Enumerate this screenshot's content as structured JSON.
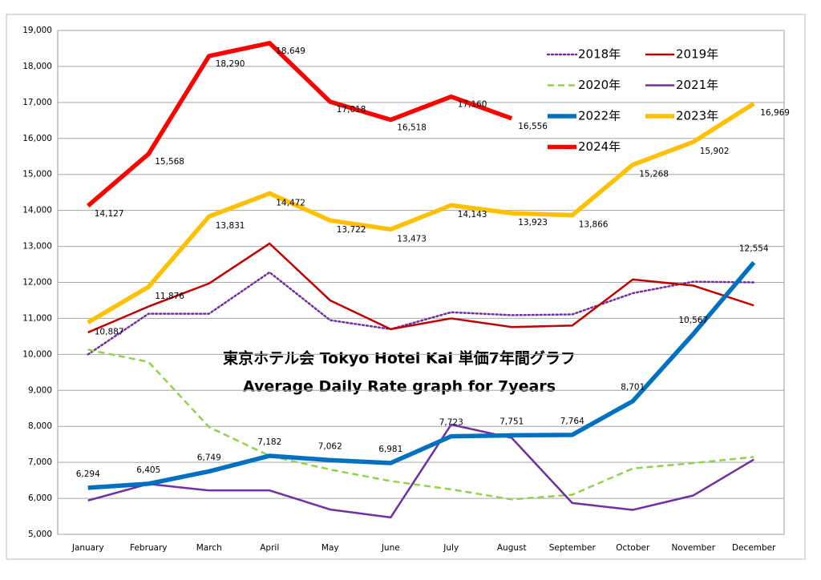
{
  "chart_data": {
    "type": "line",
    "title": "東京ホテル会  Tokyo Hotel Kai  単価7年間グラフ",
    "subtitle": "Average Daily Rate graph for 7years",
    "categories": [
      "January",
      "February",
      "March",
      "April",
      "May",
      "June",
      "July",
      "August",
      "September",
      "October",
      "November",
      "December"
    ],
    "ylim": [
      5000,
      19000
    ],
    "yticks": [
      {
        "value": 5000,
        "label": "5,000"
      },
      {
        "value": 6000,
        "label": "6,000"
      },
      {
        "value": 7000,
        "label": "7,000"
      },
      {
        "value": 8000,
        "label": "8,000"
      },
      {
        "value": 9000,
        "label": "9,000"
      },
      {
        "value": 10000,
        "label": "10,000"
      },
      {
        "value": 11000,
        "label": "11,000"
      },
      {
        "value": 12000,
        "label": "12,000"
      },
      {
        "value": 13000,
        "label": "13,000"
      },
      {
        "value": 14000,
        "label": "14,000"
      },
      {
        "value": 15000,
        "label": "15,000"
      },
      {
        "value": 16000,
        "label": "16,000"
      },
      {
        "value": 17000,
        "label": "17,000"
      },
      {
        "value": 18000,
        "label": "18,000"
      },
      {
        "value": 19000,
        "label": "19,000"
      }
    ],
    "grid": true,
    "legend": "top-right",
    "series": [
      {
        "name": "2018年",
        "color": "#7030a0",
        "style": "dotted",
        "values": [
          10000,
          11130,
          11130,
          12280,
          10950,
          10700,
          11170,
          11090,
          11110,
          11700,
          12020,
          12000
        ]
      },
      {
        "name": "2019年",
        "color": "#c00000",
        "style": "solid",
        "values": [
          10610,
          11330,
          11970,
          13080,
          11500,
          10700,
          11000,
          10760,
          10800,
          12080,
          11910,
          11360
        ]
      },
      {
        "name": "2020年",
        "color": "#92d050",
        "style": "dashed",
        "values": [
          10130,
          9790,
          7980,
          7180,
          6800,
          6480,
          6250,
          5970,
          6100,
          6830,
          6980,
          7150
        ]
      },
      {
        "name": "2021年",
        "color": "#7030a0",
        "style": "solid",
        "values": [
          5940,
          6400,
          6220,
          6220,
          5690,
          5470,
          8050,
          7680,
          5870,
          5680,
          6080,
          7080
        ]
      },
      {
        "name": "2022年",
        "color": "#0070c0",
        "style": "solid",
        "values": [
          6294,
          6405,
          6749,
          7182,
          7062,
          6981,
          7723,
          7751,
          7764,
          8701,
          10567,
          12554
        ],
        "value_labels": [
          "6,294",
          "6,405",
          "6,749",
          "7,182",
          "7,062",
          "6,981",
          "7,723",
          "7,751",
          "7,764",
          "8,701",
          "10,567",
          "12,554"
        ]
      },
      {
        "name": "2023年",
        "color": "#ffc000",
        "style": "solid",
        "values": [
          10887,
          11876,
          13831,
          14472,
          13722,
          13473,
          14143,
          13923,
          13866,
          15268,
          15902,
          16969
        ],
        "value_labels": [
          "10,887",
          "11,876",
          "13,831",
          "14,472",
          "13,722",
          "13,473",
          "14,143",
          "13,923",
          "13,866",
          "15,268",
          "15,902",
          "16,969"
        ]
      },
      {
        "name": "2024年",
        "color": "#ff0000",
        "style": "solid",
        "values": [
          14127,
          15568,
          18290,
          18649,
          17018,
          16518,
          17160,
          16556,
          null,
          null,
          null,
          null
        ],
        "value_labels": [
          "14,127",
          "15,568",
          "18,290",
          "18,649",
          "17,018",
          "16,518",
          "17,160",
          "16,556",
          null,
          null,
          null,
          null
        ]
      }
    ]
  }
}
